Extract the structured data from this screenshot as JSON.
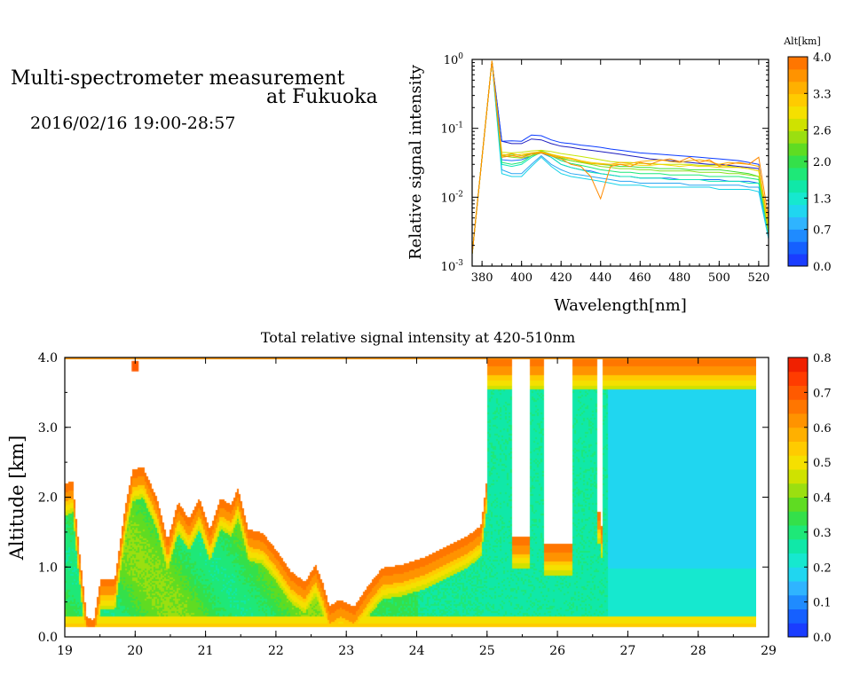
{
  "header": {
    "title_line1": "Multi-spectrometer measurement",
    "title_line2": "at Fukuoka",
    "date_range": "2016/02/16 19:00-28:57"
  },
  "chart_data": [
    {
      "type": "line",
      "xlabel": "Wavelength[nm]",
      "ylabel": "Relative signal intensity",
      "x_ticks": [
        380,
        400,
        420,
        440,
        460,
        480,
        500,
        520
      ],
      "xlim": [
        375,
        525
      ],
      "ylim": [
        0.001,
        1
      ],
      "y_scale": "log",
      "y_ticks": [
        {
          "value": 0.001,
          "base": "10",
          "exp": "-3"
        },
        {
          "value": 0.01,
          "base": "10",
          "exp": "-2"
        },
        {
          "value": 0.1,
          "base": "10",
          "exp": "-1"
        },
        {
          "value": 1,
          "base": "10",
          "exp": "0"
        }
      ],
      "x": [
        375,
        385,
        390,
        395,
        400,
        405,
        410,
        415,
        420,
        425,
        430,
        435,
        440,
        445,
        450,
        455,
        460,
        465,
        470,
        475,
        480,
        485,
        490,
        495,
        500,
        505,
        510,
        515,
        520,
        525
      ],
      "series": [
        {
          "alt_km": 0.0,
          "color": "#1c1cbf",
          "values": [
            0.0015,
            0.95,
            0.065,
            0.06,
            0.06,
            0.07,
            0.068,
            0.06,
            0.055,
            0.053,
            0.05,
            0.048,
            0.046,
            0.044,
            0.042,
            0.04,
            0.038,
            0.036,
            0.035,
            0.034,
            0.033,
            0.032,
            0.031,
            0.03,
            0.03,
            0.029,
            0.028,
            0.027,
            0.026,
            0.003
          ]
        },
        {
          "alt_km": 0.0,
          "color": "#0b3bff",
          "values": [
            0.0015,
            0.95,
            0.065,
            0.066,
            0.065,
            0.08,
            0.078,
            0.068,
            0.062,
            0.06,
            0.057,
            0.055,
            0.053,
            0.05,
            0.048,
            0.046,
            0.044,
            0.043,
            0.042,
            0.041,
            0.04,
            0.039,
            0.038,
            0.037,
            0.036,
            0.035,
            0.034,
            0.032,
            0.03,
            0.003
          ]
        },
        {
          "alt_km": 0.2,
          "color": "#1e6bff",
          "values": [
            0.0015,
            0.95,
            0.035,
            0.034,
            0.035,
            0.04,
            0.044,
            0.038,
            0.03,
            0.027,
            0.025,
            0.024,
            0.022,
            0.021,
            0.02,
            0.02,
            0.019,
            0.019,
            0.019,
            0.019,
            0.018,
            0.018,
            0.018,
            0.018,
            0.018,
            0.017,
            0.017,
            0.017,
            0.016,
            0.003
          ]
        },
        {
          "alt_km": 0.5,
          "color": "#2aa6f2",
          "values": [
            0.0015,
            0.95,
            0.025,
            0.022,
            0.022,
            0.03,
            0.04,
            0.03,
            0.025,
            0.022,
            0.021,
            0.02,
            0.019,
            0.018,
            0.017,
            0.017,
            0.016,
            0.016,
            0.016,
            0.016,
            0.016,
            0.015,
            0.015,
            0.015,
            0.015,
            0.015,
            0.015,
            0.014,
            0.014,
            0.0025
          ]
        },
        {
          "alt_km": 0.7,
          "color": "#14d2e8",
          "values": [
            0.0015,
            0.95,
            0.022,
            0.02,
            0.02,
            0.028,
            0.038,
            0.028,
            0.022,
            0.02,
            0.019,
            0.018,
            0.017,
            0.016,
            0.015,
            0.015,
            0.015,
            0.014,
            0.014,
            0.014,
            0.014,
            0.014,
            0.014,
            0.014,
            0.013,
            0.013,
            0.013,
            0.013,
            0.012,
            0.0025
          ]
        },
        {
          "alt_km": 1.0,
          "color": "#10e6b8",
          "values": [
            0.0015,
            0.95,
            0.03,
            0.028,
            0.03,
            0.038,
            0.045,
            0.038,
            0.03,
            0.027,
            0.025,
            0.023,
            0.022,
            0.021,
            0.02,
            0.02,
            0.019,
            0.019,
            0.019,
            0.018,
            0.018,
            0.018,
            0.018,
            0.017,
            0.017,
            0.017,
            0.017,
            0.016,
            0.016,
            0.003
          ]
        },
        {
          "alt_km": 1.3,
          "color": "#1ae878",
          "values": [
            0.0015,
            0.95,
            0.032,
            0.03,
            0.032,
            0.04,
            0.046,
            0.04,
            0.034,
            0.031,
            0.029,
            0.027,
            0.025,
            0.024,
            0.023,
            0.023,
            0.022,
            0.022,
            0.022,
            0.021,
            0.021,
            0.021,
            0.021,
            0.02,
            0.02,
            0.02,
            0.02,
            0.019,
            0.018,
            0.003
          ]
        },
        {
          "alt_km": 1.6,
          "color": "#3fe030",
          "values": [
            0.0015,
            0.95,
            0.04,
            0.042,
            0.04,
            0.042,
            0.047,
            0.042,
            0.037,
            0.034,
            0.032,
            0.031,
            0.03,
            0.029,
            0.028,
            0.028,
            0.027,
            0.027,
            0.026,
            0.026,
            0.026,
            0.025,
            0.025,
            0.025,
            0.025,
            0.024,
            0.023,
            0.022,
            0.02,
            0.003
          ]
        },
        {
          "alt_km": 2.0,
          "color": "#8ae11c",
          "values": [
            0.0015,
            0.95,
            0.04,
            0.038,
            0.037,
            0.04,
            0.044,
            0.04,
            0.036,
            0.034,
            0.032,
            0.03,
            0.028,
            0.027,
            0.026,
            0.026,
            0.025,
            0.025,
            0.024,
            0.024,
            0.024,
            0.024,
            0.023,
            0.023,
            0.023,
            0.022,
            0.022,
            0.021,
            0.02,
            0.003
          ]
        },
        {
          "alt_km": 2.6,
          "color": "#c6e600",
          "values": [
            0.0015,
            0.95,
            0.045,
            0.044,
            0.045,
            0.047,
            0.048,
            0.046,
            0.043,
            0.041,
            0.039,
            0.037,
            0.035,
            0.033,
            0.032,
            0.032,
            0.031,
            0.031,
            0.03,
            0.03,
            0.03,
            0.03,
            0.029,
            0.029,
            0.029,
            0.028,
            0.027,
            0.026,
            0.024,
            0.0035
          ]
        },
        {
          "alt_km": 2.9,
          "color": "#f2d400",
          "values": [
            0.0015,
            0.95,
            0.042,
            0.04,
            0.042,
            0.044,
            0.046,
            0.042,
            0.039,
            0.037,
            0.034,
            0.032,
            0.031,
            0.03,
            0.03,
            0.03,
            0.029,
            0.029,
            0.03,
            0.029,
            0.028,
            0.029,
            0.028,
            0.028,
            0.027,
            0.027,
            0.027,
            0.026,
            0.024,
            0.0035
          ]
        },
        {
          "alt_km": 3.3,
          "color": "#ffb000",
          "values": [
            0.0015,
            0.95,
            0.04,
            0.043,
            0.04,
            0.044,
            0.045,
            0.041,
            0.038,
            0.036,
            0.033,
            0.031,
            0.03,
            0.03,
            0.032,
            0.031,
            0.033,
            0.034,
            0.035,
            0.033,
            0.032,
            0.034,
            0.035,
            0.033,
            0.03,
            0.032,
            0.031,
            0.03,
            0.028,
            0.004
          ]
        },
        {
          "alt_km": 3.7,
          "color": "#ff8a00",
          "values": [
            0.0015,
            0.95,
            0.038,
            0.04,
            0.038,
            0.042,
            0.044,
            0.04,
            0.036,
            0.03,
            0.028,
            0.02,
            0.0095,
            0.028,
            0.03,
            0.028,
            0.032,
            0.03,
            0.034,
            0.036,
            0.033,
            0.038,
            0.032,
            0.035,
            0.028,
            0.03,
            0.032,
            0.03,
            0.038,
            0.005
          ]
        }
      ],
      "colorbar": {
        "title": "Alt[km]",
        "labels": [
          "4.0",
          "3.3",
          "2.6",
          "2.0",
          "1.3",
          "0.7",
          "0.0"
        ],
        "min": 0,
        "max": 4,
        "colors": [
          "#1a3dff",
          "#1560ff",
          "#1f8bff",
          "#2fb4ff",
          "#20d6f0",
          "#16e8cf",
          "#10e8a8",
          "#1ee878",
          "#34e04a",
          "#5fdc22",
          "#9bdf10",
          "#cfe200",
          "#f5e000",
          "#ffcb00",
          "#ffb000",
          "#ff9300",
          "#ff7600"
        ]
      }
    },
    {
      "type": "heatmap",
      "title": "Total relative signal intensity at 420-510nm",
      "xlabel": "",
      "ylabel": "Altitude [km]",
      "x_ticks": [
        "19",
        "20",
        "21",
        "22",
        "23",
        "24",
        "25",
        "26",
        "27",
        "28",
        "29"
      ],
      "y_ticks": [
        "0.0",
        "1.0",
        "2.0",
        "3.0",
        "4.0"
      ],
      "xlim": [
        19,
        29
      ],
      "ylim": [
        0,
        4
      ],
      "data_x_range": [
        19,
        28.95
      ],
      "data_y_range": [
        0.15,
        4.0
      ],
      "surface_base": [
        0.38,
        0.36,
        0.34,
        0.32,
        0.31,
        0.3,
        0.29,
        0.28,
        0.27,
        0.26,
        0.25,
        0.24,
        0.24,
        0.23,
        0.23,
        0.22,
        0.22,
        0.21,
        0.21,
        0.2,
        0.2
      ],
      "surface_time": [
        19,
        19.5,
        20,
        20.5,
        21,
        21.5,
        22,
        22.5,
        23,
        23.5,
        24,
        24.5,
        25,
        25.5,
        26,
        26.5,
        27,
        27.5,
        28,
        28.5,
        29
      ],
      "cloud_top_km": [
        [
          19,
          2.2
        ],
        [
          19.1,
          2.25
        ],
        [
          19.18,
          1.4
        ],
        [
          19.3,
          0.3
        ],
        [
          19.4,
          0.25
        ],
        [
          19.5,
          0.85
        ],
        [
          19.7,
          0.85
        ],
        [
          19.85,
          1.9
        ],
        [
          19.95,
          2.4
        ],
        [
          20.1,
          2.45
        ],
        [
          20.3,
          2.0
        ],
        [
          20.45,
          1.4
        ],
        [
          20.6,
          1.95
        ],
        [
          20.75,
          1.7
        ],
        [
          20.9,
          2.0
        ],
        [
          21.05,
          1.55
        ],
        [
          21.2,
          2.0
        ],
        [
          21.35,
          1.9
        ],
        [
          21.45,
          2.15
        ],
        [
          21.6,
          1.55
        ],
        [
          21.8,
          1.5
        ],
        [
          22,
          1.25
        ],
        [
          22.2,
          0.95
        ],
        [
          22.4,
          0.8
        ],
        [
          22.55,
          1.05
        ],
        [
          22.65,
          0.8
        ],
        [
          22.75,
          0.45
        ],
        [
          22.9,
          0.55
        ],
        [
          23.1,
          0.45
        ],
        [
          23.3,
          0.75
        ],
        [
          23.5,
          1.0
        ],
        [
          23.8,
          1.05
        ],
        [
          24.1,
          1.15
        ],
        [
          24.4,
          1.3
        ],
        [
          24.7,
          1.45
        ],
        [
          24.9,
          1.6
        ],
        [
          25.0,
          2.4
        ]
      ],
      "clear_gaps": [
        [
          25.35,
          25.6,
          1.45
        ],
        [
          25.8,
          26.2,
          1.35
        ],
        [
          26.55,
          26.6,
          1.8
        ]
      ],
      "cloud_colums": [
        [
          19.95,
          20.05,
          3.8,
          3.95
        ]
      ],
      "color_regions": [
        [
          25.0,
          29.0,
          "low"
        ],
        [
          19.0,
          24.9,
          "mid"
        ]
      ],
      "colorbar": {
        "labels": [
          "0.8",
          "0.7",
          "0.6",
          "0.5",
          "0.4",
          "0.3",
          "0.2",
          "0.1",
          "0.0"
        ],
        "min": 0,
        "max": 0.8,
        "colors": [
          "#1a3dff",
          "#1560ff",
          "#1f8bff",
          "#2fb4ff",
          "#20d6f0",
          "#16e8cf",
          "#10e8a8",
          "#1ee878",
          "#34e04a",
          "#5fdc22",
          "#9bdf10",
          "#cfe200",
          "#f5e000",
          "#ffcb00",
          "#ffb000",
          "#ff9300",
          "#ff7600",
          "#ff5a00",
          "#ff3c00",
          "#f02000"
        ]
      }
    }
  ]
}
